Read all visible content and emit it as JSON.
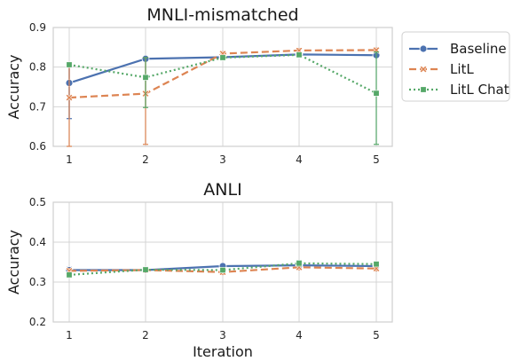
{
  "chart_data": [
    {
      "type": "line",
      "title": "MNLI-mismatched",
      "xlabel": "",
      "ylabel": "Accuracy",
      "x": [
        1,
        2,
        3,
        4,
        5
      ],
      "ylim": [
        0.6,
        0.9
      ],
      "yticks": [
        "0.6",
        "0.7",
        "0.8",
        "0.9"
      ],
      "xticks": [
        "1",
        "2",
        "3",
        "4",
        "5"
      ],
      "grid": true,
      "legend": "outside-right",
      "series": [
        {
          "name": "Baseline",
          "color": "#4c72b0",
          "marker": "circle",
          "dash": "solid",
          "values": [
            0.76,
            0.821,
            0.825,
            0.832,
            0.83
          ],
          "err_low": [
            0.67,
            0.815,
            0.82,
            0.826,
            0.825
          ],
          "err_high": [
            0.81,
            0.827,
            0.83,
            0.838,
            0.835
          ]
        },
        {
          "name": "LitL",
          "color": "#dd8452",
          "marker": "x",
          "dash": "dashed",
          "values": [
            0.723,
            0.733,
            0.834,
            0.842,
            0.843
          ],
          "err_low": [
            0.6,
            0.605,
            0.829,
            0.837,
            0.838
          ],
          "err_high": [
            0.808,
            0.824,
            0.839,
            0.847,
            0.848
          ]
        },
        {
          "name": "LitL Chat",
          "color": "#55a868",
          "marker": "square",
          "dash": "dotted",
          "values": [
            0.806,
            0.774,
            0.824,
            0.831,
            0.734
          ],
          "err_low": [
            0.801,
            0.698,
            0.819,
            0.826,
            0.605
          ],
          "err_high": [
            0.811,
            0.824,
            0.829,
            0.836,
            0.838
          ]
        }
      ]
    },
    {
      "type": "line",
      "title": "ANLI",
      "xlabel": "Iteration",
      "ylabel": "Accuracy",
      "x": [
        1,
        2,
        3,
        4,
        5
      ],
      "ylim": [
        0.2,
        0.5
      ],
      "yticks": [
        "0.2",
        "0.3",
        "0.4",
        "0.5"
      ],
      "xticks": [
        "1",
        "2",
        "3",
        "4",
        "5"
      ],
      "grid": true,
      "series": [
        {
          "name": "Baseline",
          "color": "#4c72b0",
          "marker": "circle",
          "dash": "solid",
          "values": [
            0.33,
            0.33,
            0.34,
            0.342,
            0.34
          ],
          "err_low": [
            0.323,
            0.324,
            0.334,
            0.336,
            0.334
          ],
          "err_high": [
            0.337,
            0.336,
            0.346,
            0.348,
            0.346
          ]
        },
        {
          "name": "LitL",
          "color": "#dd8452",
          "marker": "x",
          "dash": "dashed",
          "values": [
            0.328,
            0.33,
            0.325,
            0.337,
            0.334
          ],
          "err_low": [
            0.322,
            0.324,
            0.319,
            0.331,
            0.328
          ],
          "err_high": [
            0.334,
            0.336,
            0.331,
            0.343,
            0.34
          ]
        },
        {
          "name": "LitL Chat",
          "color": "#55a868",
          "marker": "square",
          "dash": "dotted",
          "values": [
            0.318,
            0.331,
            0.33,
            0.347,
            0.345
          ],
          "err_low": [
            0.312,
            0.325,
            0.324,
            0.34,
            0.339
          ],
          "err_high": [
            0.324,
            0.337,
            0.336,
            0.354,
            0.351
          ]
        }
      ]
    }
  ]
}
